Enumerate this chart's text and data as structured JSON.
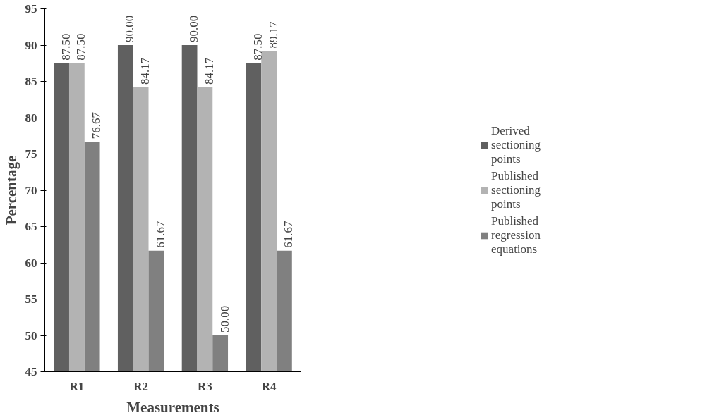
{
  "chart_data": {
    "type": "bar",
    "xlabel": "Measurements",
    "ylabel": "Percentage",
    "categories": [
      "R1",
      "R2",
      "R3",
      "R4"
    ],
    "series": [
      {
        "name": "Derived sectioning points",
        "color": "#606060",
        "values": [
          87.5,
          90.0,
          90.0,
          87.5
        ],
        "value_labels": [
          "87.50",
          "90.00",
          "90.00",
          "87.50"
        ]
      },
      {
        "name": "Published sectioning points",
        "color": "#b3b3b3",
        "values": [
          87.5,
          84.17,
          84.17,
          89.17
        ],
        "value_labels": [
          "87.50",
          "84.17",
          "84.17",
          "89.17"
        ]
      },
      {
        "name": "Published regression equations",
        "color": "#808080",
        "values": [
          76.67,
          61.67,
          50.0,
          61.67
        ],
        "value_labels": [
          "76.67",
          "61.67",
          "50.00",
          "61.67"
        ]
      }
    ],
    "ylim": [
      45,
      95
    ],
    "yticks": [
      45,
      50,
      55,
      60,
      65,
      70,
      75,
      80,
      85,
      90,
      95
    ],
    "grid": false,
    "legend": "right"
  }
}
